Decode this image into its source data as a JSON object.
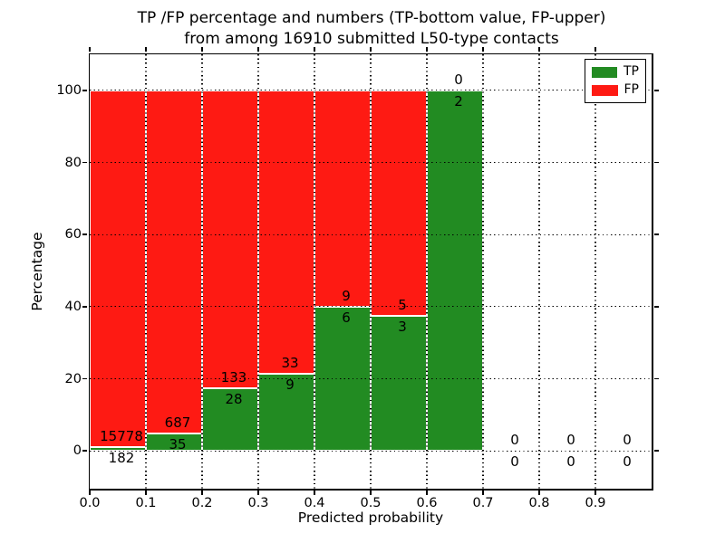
{
  "title": {
    "line1": "TP /FP percentage and numbers (TP-bottom value, FP-upper)",
    "line2": "from among 16910 submitted L50-type contacts"
  },
  "chart_data": {
    "type": "bar",
    "stacked": true,
    "title": "TP /FP percentage and numbers (TP-bottom value, FP-upper) from among 16910 submitted L50-type contacts",
    "xlabel": "Predicted probability",
    "ylabel": "Percentage",
    "xlim": [
      0.0,
      1.0
    ],
    "ylim": [
      -10.5,
      110
    ],
    "grid": true,
    "grid_style": "dotted",
    "bin_width": 0.1,
    "bin_starts": [
      0.0,
      0.1,
      0.2,
      0.3,
      0.4,
      0.5,
      0.6,
      0.7,
      0.8,
      0.9
    ],
    "x_tick_labels": [
      "0.0",
      "0.1",
      "0.2",
      "0.3",
      "0.4",
      "0.5",
      "0.6",
      "0.7",
      "0.8",
      "0.9"
    ],
    "y_ticks": [
      0,
      20,
      40,
      60,
      80,
      100
    ],
    "series": [
      {
        "name": "TP",
        "color": "#228b22",
        "counts": [
          182,
          35,
          28,
          9,
          6,
          3,
          2,
          0,
          0,
          0
        ]
      },
      {
        "name": "FP",
        "color": "#fe1a13",
        "counts": [
          15778,
          687,
          133,
          33,
          9,
          5,
          0,
          0,
          0,
          0
        ]
      }
    ],
    "tp_percent": [
      1.1,
      4.8,
      17.4,
      21.4,
      40.0,
      37.5,
      100.0,
      0,
      0,
      0
    ],
    "legend": {
      "position": "upper right",
      "entries": [
        "TP",
        "FP"
      ]
    }
  },
  "colors": {
    "tp": "#228b22",
    "fp": "#fe1a13",
    "grid": "#000000",
    "background": "#ffffff"
  }
}
